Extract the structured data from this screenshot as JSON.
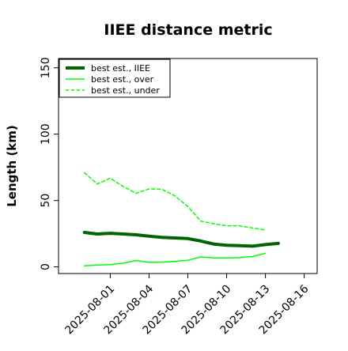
{
  "chart_data": {
    "type": "line",
    "title": "IIEE distance metric",
    "xlabel": "",
    "ylabel": "Length (km)",
    "x": [
      "2025-07-30",
      "2025-07-31",
      "2025-08-01",
      "2025-08-02",
      "2025-08-03",
      "2025-08-04",
      "2025-08-05",
      "2025-08-06",
      "2025-08-07",
      "2025-08-08",
      "2025-08-09",
      "2025-08-10",
      "2025-08-11",
      "2025-08-12",
      "2025-08-13",
      "2025-08-14"
    ],
    "xticks": [
      "2025-08-01",
      "2025-08-04",
      "2025-08-07",
      "2025-08-10",
      "2025-08-13",
      "2025-08-16"
    ],
    "xlim": [
      "2025-07-28",
      "2025-08-17"
    ],
    "ylim": [
      -5,
      157
    ],
    "yticks": [
      0,
      50,
      100,
      150
    ],
    "grid": false,
    "legend_position": "top-left",
    "series": [
      {
        "name": "best est., IIEE",
        "color": "#006400",
        "line_style": "solid",
        "weight": "thick",
        "values": [
          26,
          24.8,
          25.3,
          24.8,
          24.2,
          23.2,
          22.3,
          21.8,
          21.3,
          19.5,
          17.2,
          16.3,
          16.0,
          15.6,
          16.8,
          17.7
        ]
      },
      {
        "name": "best est., over",
        "color": "#00ff00",
        "line_style": "solid",
        "weight": "thin",
        "values": [
          0.8,
          1.4,
          1.7,
          2.8,
          4.8,
          3.4,
          3.6,
          4.2,
          5.0,
          7.5,
          6.8,
          6.8,
          7.0,
          7.8,
          10.3,
          null
        ]
      },
      {
        "name": "best est., under",
        "color": "#00ff00",
        "line_style": "dashed",
        "weight": "thin",
        "values": [
          71,
          62.5,
          66.8,
          60.6,
          55.5,
          58.7,
          58.5,
          53.5,
          45.5,
          34.5,
          32.5,
          31.0,
          31.0,
          29.3,
          27.8,
          null
        ]
      }
    ]
  }
}
